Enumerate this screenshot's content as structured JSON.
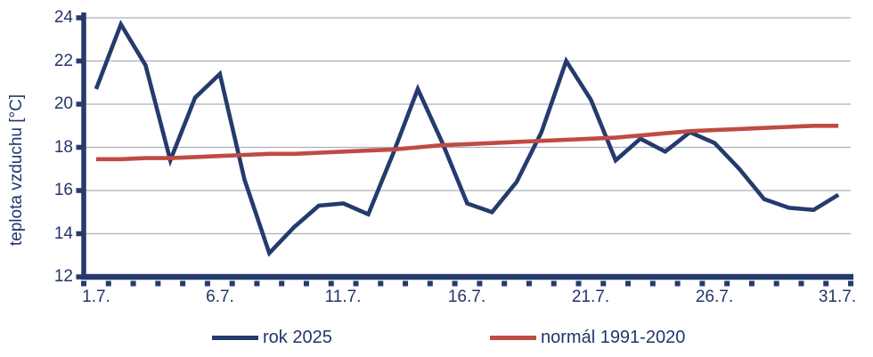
{
  "colors": {
    "axis": "#253a6d",
    "text": "#23356b",
    "gridline": "#a9b0bc",
    "series_rok": "#253a6d",
    "series_normal": "#bf4b44",
    "background": "#ffffff"
  },
  "chart_data": {
    "type": "line",
    "title": "",
    "xlabel": "",
    "ylabel": "teplota vzduchu [°C]",
    "ylim": [
      12,
      24
    ],
    "grid": "horizontal",
    "legend_position": "bottom",
    "ytick_labels": [
      "24",
      "22",
      "20",
      "18",
      "16",
      "14",
      "12"
    ],
    "ytick_values": [
      24,
      22,
      20,
      18,
      16,
      14,
      12
    ],
    "grid_values": [
      24,
      22,
      20,
      18,
      16,
      14
    ],
    "xtick_labels": [
      "1.7.",
      "6.7.",
      "11.7.",
      "16.7.",
      "21.7.",
      "26.7.",
      "31.7."
    ],
    "xtick_days": [
      1,
      6,
      11,
      16,
      21,
      26,
      31
    ],
    "categories": [
      "1.7.",
      "2.7.",
      "3.7.",
      "4.7.",
      "5.7.",
      "6.7.",
      "7.7.",
      "8.7.",
      "9.7.",
      "10.7.",
      "11.7.",
      "12.7.",
      "13.7.",
      "14.7.",
      "15.7.",
      "16.7.",
      "17.7.",
      "18.7.",
      "19.7.",
      "20.7.",
      "21.7.",
      "22.7.",
      "23.7.",
      "24.7.",
      "25.7.",
      "26.7.",
      "27.7.",
      "28.7.",
      "29.7.",
      "30.7.",
      "31.7."
    ],
    "series": [
      {
        "name": "rok 2025",
        "color": "#253a6d",
        "values": [
          20.7,
          23.7,
          21.8,
          17.4,
          20.3,
          21.4,
          16.5,
          13.1,
          14.3,
          15.3,
          15.4,
          14.9,
          17.7,
          20.7,
          18.2,
          15.4,
          15.0,
          16.4,
          18.7,
          22.0,
          20.2,
          17.4,
          18.4,
          17.8,
          18.7,
          18.2,
          17.0,
          15.6,
          15.2,
          15.1,
          15.8
        ]
      },
      {
        "name": "normál 1991-2020",
        "color": "#bf4b44",
        "values": [
          17.45,
          17.45,
          17.5,
          17.5,
          17.55,
          17.6,
          17.65,
          17.7,
          17.7,
          17.75,
          17.8,
          17.85,
          17.9,
          18.0,
          18.1,
          18.15,
          18.2,
          18.25,
          18.3,
          18.35,
          18.4,
          18.45,
          18.55,
          18.65,
          18.75,
          18.8,
          18.85,
          18.9,
          18.95,
          19.0,
          19.0
        ]
      }
    ]
  },
  "legend": {
    "items": [
      {
        "label": "rok 2025",
        "color": "#253a6d"
      },
      {
        "label": "normál 1991-2020",
        "color": "#bf4b44"
      }
    ]
  }
}
